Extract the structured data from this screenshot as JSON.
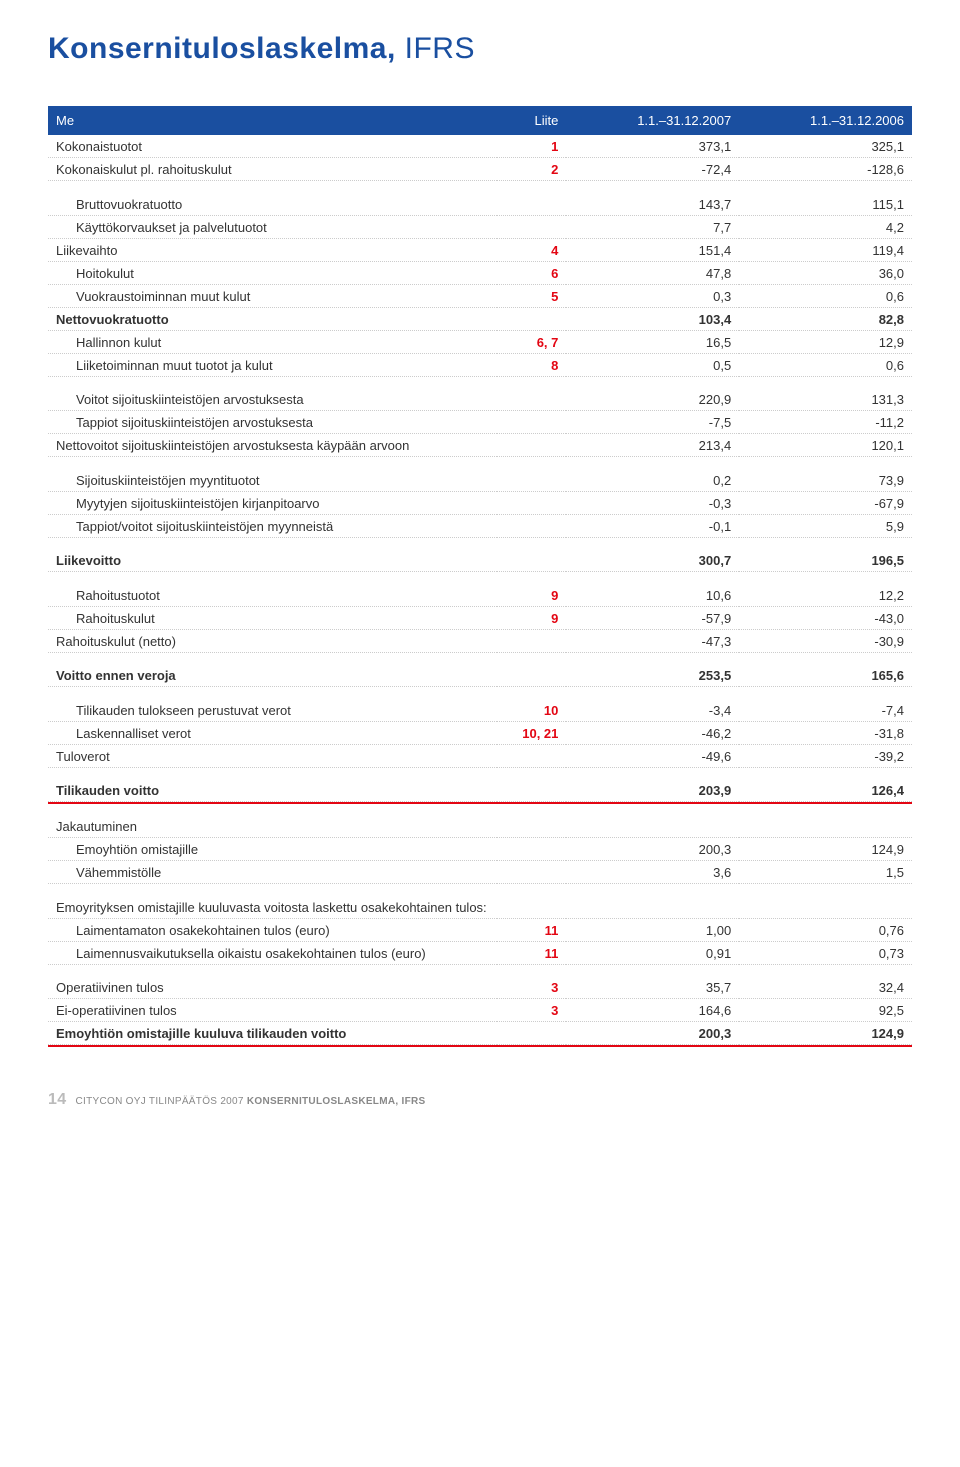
{
  "title": {
    "bold": "Konsernituloslaskelma,",
    "light": "IFRS"
  },
  "colors": {
    "header_bg": "#1a4fa0",
    "header_text": "#ffffff",
    "note_text": "#e30613",
    "rule_red": "#e30613",
    "dotted": "#cccccc",
    "body_text": "#333333",
    "title": "#1a4fa0",
    "footer": "#888888",
    "page_num": "#bbbbbb",
    "background": "#ffffff"
  },
  "typography": {
    "title_fontsize": 30,
    "body_fontsize": 13,
    "footer_fontsize": 10,
    "font_family": "Arial"
  },
  "table": {
    "header": {
      "me": "Me",
      "liite": "Liite",
      "c1": "1.1.–31.12.2007",
      "c2": "1.1.–31.12.2006"
    },
    "column_widths_pct": [
      52,
      8,
      20,
      20
    ],
    "rows": [
      {
        "label": "Kokonaistuotot",
        "note": "1",
        "v1": "373,1",
        "v2": "325,1"
      },
      {
        "label": "Kokonaiskulut pl. rahoituskulut",
        "note": "2",
        "v1": "-72,4",
        "v2": "-128,6"
      },
      {
        "spacer": true
      },
      {
        "label": "Bruttovuokratuotto",
        "indent": 1,
        "v1": "143,7",
        "v2": "115,1"
      },
      {
        "label": "Käyttökorvaukset ja palvelutuotot",
        "indent": 1,
        "v1": "7,7",
        "v2": "4,2"
      },
      {
        "label": "Liikevaihto",
        "note": "4",
        "v1": "151,4",
        "v2": "119,4"
      },
      {
        "label": "Hoitokulut",
        "indent": 1,
        "note": "6",
        "v1": "47,8",
        "v2": "36,0"
      },
      {
        "label": "Vuokraustoiminnan muut kulut",
        "indent": 1,
        "note": "5",
        "v1": "0,3",
        "v2": "0,6"
      },
      {
        "label": "Nettovuokratuotto",
        "bold": true,
        "v1": "103,4",
        "v2": "82,8",
        "boldvals": true
      },
      {
        "label": "Hallinnon kulut",
        "indent": 1,
        "note": "6, 7",
        "v1": "16,5",
        "v2": "12,9"
      },
      {
        "label": "Liiketoiminnan muut tuotot ja kulut",
        "indent": 1,
        "note": "8",
        "v1": "0,5",
        "v2": "0,6"
      },
      {
        "spacer": true
      },
      {
        "label": "Voitot sijoituskiinteistöjen arvostuksesta",
        "indent": 1,
        "v1": "220,9",
        "v2": "131,3"
      },
      {
        "label": "Tappiot sijoituskiinteistöjen arvostuksesta",
        "indent": 1,
        "v1": "-7,5",
        "v2": "-11,2"
      },
      {
        "label": "Nettovoitot sijoituskiinteistöjen arvostuksesta käypään arvoon",
        "v1": "213,4",
        "v2": "120,1"
      },
      {
        "spacer": true
      },
      {
        "label": "Sijoituskiinteistöjen myyntituotot",
        "indent": 1,
        "v1": "0,2",
        "v2": "73,9"
      },
      {
        "label": "Myytyjen sijoituskiinteistöjen kirjanpitoarvo",
        "indent": 1,
        "v1": "-0,3",
        "v2": "-67,9"
      },
      {
        "label": "Tappiot/voitot sijoituskiinteistöjen myynneistä",
        "indent": 1,
        "v1": "-0,1",
        "v2": "5,9"
      },
      {
        "spacer": true
      },
      {
        "label": "Liikevoitto",
        "bold": true,
        "v1": "300,7",
        "v2": "196,5",
        "boldvals": true
      },
      {
        "spacer": true
      },
      {
        "label": "Rahoitustuotot",
        "indent": 1,
        "note": "9",
        "v1": "10,6",
        "v2": "12,2"
      },
      {
        "label": "Rahoituskulut",
        "indent": 1,
        "note": "9",
        "v1": "-57,9",
        "v2": "-43,0"
      },
      {
        "label": "Rahoituskulut (netto)",
        "v1": "-47,3",
        "v2": "-30,9"
      },
      {
        "spacer": true
      },
      {
        "label": "Voitto ennen veroja",
        "bold": true,
        "v1": "253,5",
        "v2": "165,6",
        "boldvals": true
      },
      {
        "spacer": true
      },
      {
        "label": "Tilikauden tulokseen perustuvat verot",
        "indent": 1,
        "note": "10",
        "v1": "-3,4",
        "v2": "-7,4"
      },
      {
        "label": "Laskennalliset verot",
        "indent": 1,
        "note": "10, 21",
        "v1": "-46,2",
        "v2": "-31,8"
      },
      {
        "label": "Tuloverot",
        "v1": "-49,6",
        "v2": "-39,2"
      },
      {
        "spacer": true
      },
      {
        "label": "Tilikauden voitto",
        "bold": true,
        "v1": "203,9",
        "v2": "126,4",
        "boldvals": true
      },
      {
        "rule_red": true
      },
      {
        "spacer": true
      },
      {
        "label": "Jakautuminen"
      },
      {
        "label": "Emoyhtiön omistajille",
        "indent": 1,
        "v1": "200,3",
        "v2": "124,9"
      },
      {
        "label": "Vähemmistölle",
        "indent": 1,
        "v1": "3,6",
        "v2": "1,5"
      },
      {
        "spacer": true
      },
      {
        "label": "Emoyrityksen omistajille kuuluvasta voitosta laskettu osakekohtainen tulos:"
      },
      {
        "label": "Laimentamaton osakekohtainen tulos (euro)",
        "indent": 1,
        "note": "11",
        "v1": "1,00",
        "v2": "0,76"
      },
      {
        "label": "Laimennusvaikutuksella oikaistu osakekohtainen tulos (euro)",
        "indent": 1,
        "note": "11",
        "v1": "0,91",
        "v2": "0,73"
      },
      {
        "spacer": true
      },
      {
        "label": "Operatiivinen tulos",
        "note": "3",
        "v1": "35,7",
        "v2": "32,4"
      },
      {
        "label": "Ei-operatiivinen tulos",
        "note": "3",
        "v1": "164,6",
        "v2": "92,5"
      },
      {
        "label": "Emoyhtiön omistajille kuuluva tilikauden voitto",
        "bold": true,
        "v1": "200,3",
        "v2": "124,9",
        "boldvals": true
      },
      {
        "rule_red": true
      }
    ]
  },
  "footer": {
    "page": "14",
    "text1": "CITYCON OYJ TILINPÄÄTÖS 2007 ",
    "text2": "KONSERNITULOSLASKELMA, IFRS"
  }
}
